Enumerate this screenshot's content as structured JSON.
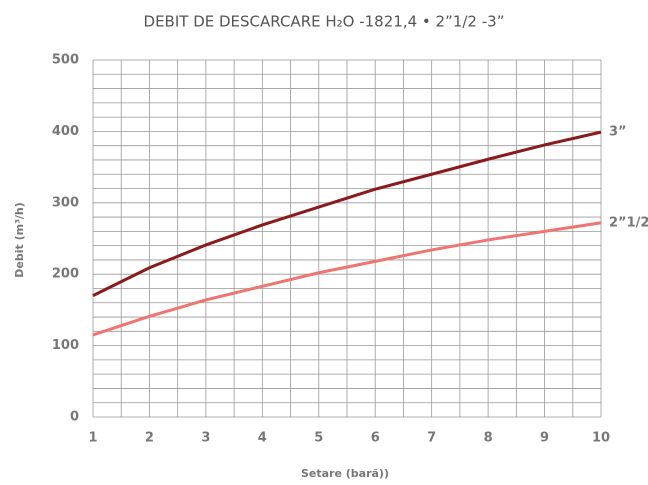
{
  "chart_data": {
    "type": "line",
    "title": "DEBIT DE DESCARCARE H₂O -1821,4 • 2”1/2 -3”",
    "x_label": "Setare (bară))",
    "y_label": "Debit (m³/h)",
    "x": [
      1,
      2,
      3,
      4,
      5,
      6,
      7,
      8,
      9,
      10
    ],
    "series": [
      {
        "name": "3”",
        "color": "#8b1a1a",
        "values": [
          170,
          209,
          241,
          269,
          294,
          319,
          340,
          361,
          381,
          399
        ]
      },
      {
        "name": "2”1/2",
        "color": "#f07470",
        "values": [
          115,
          141,
          164,
          183,
          202,
          218,
          234,
          248,
          260,
          272
        ]
      }
    ],
    "xlim": [
      1,
      10
    ],
    "xticks": [
      1,
      2,
      3,
      4,
      5,
      6,
      7,
      8,
      9,
      10
    ],
    "ylim": [
      0,
      500
    ],
    "yticks": [
      0,
      100,
      200,
      300,
      400,
      500
    ],
    "grid": true,
    "minor_grid": true
  }
}
